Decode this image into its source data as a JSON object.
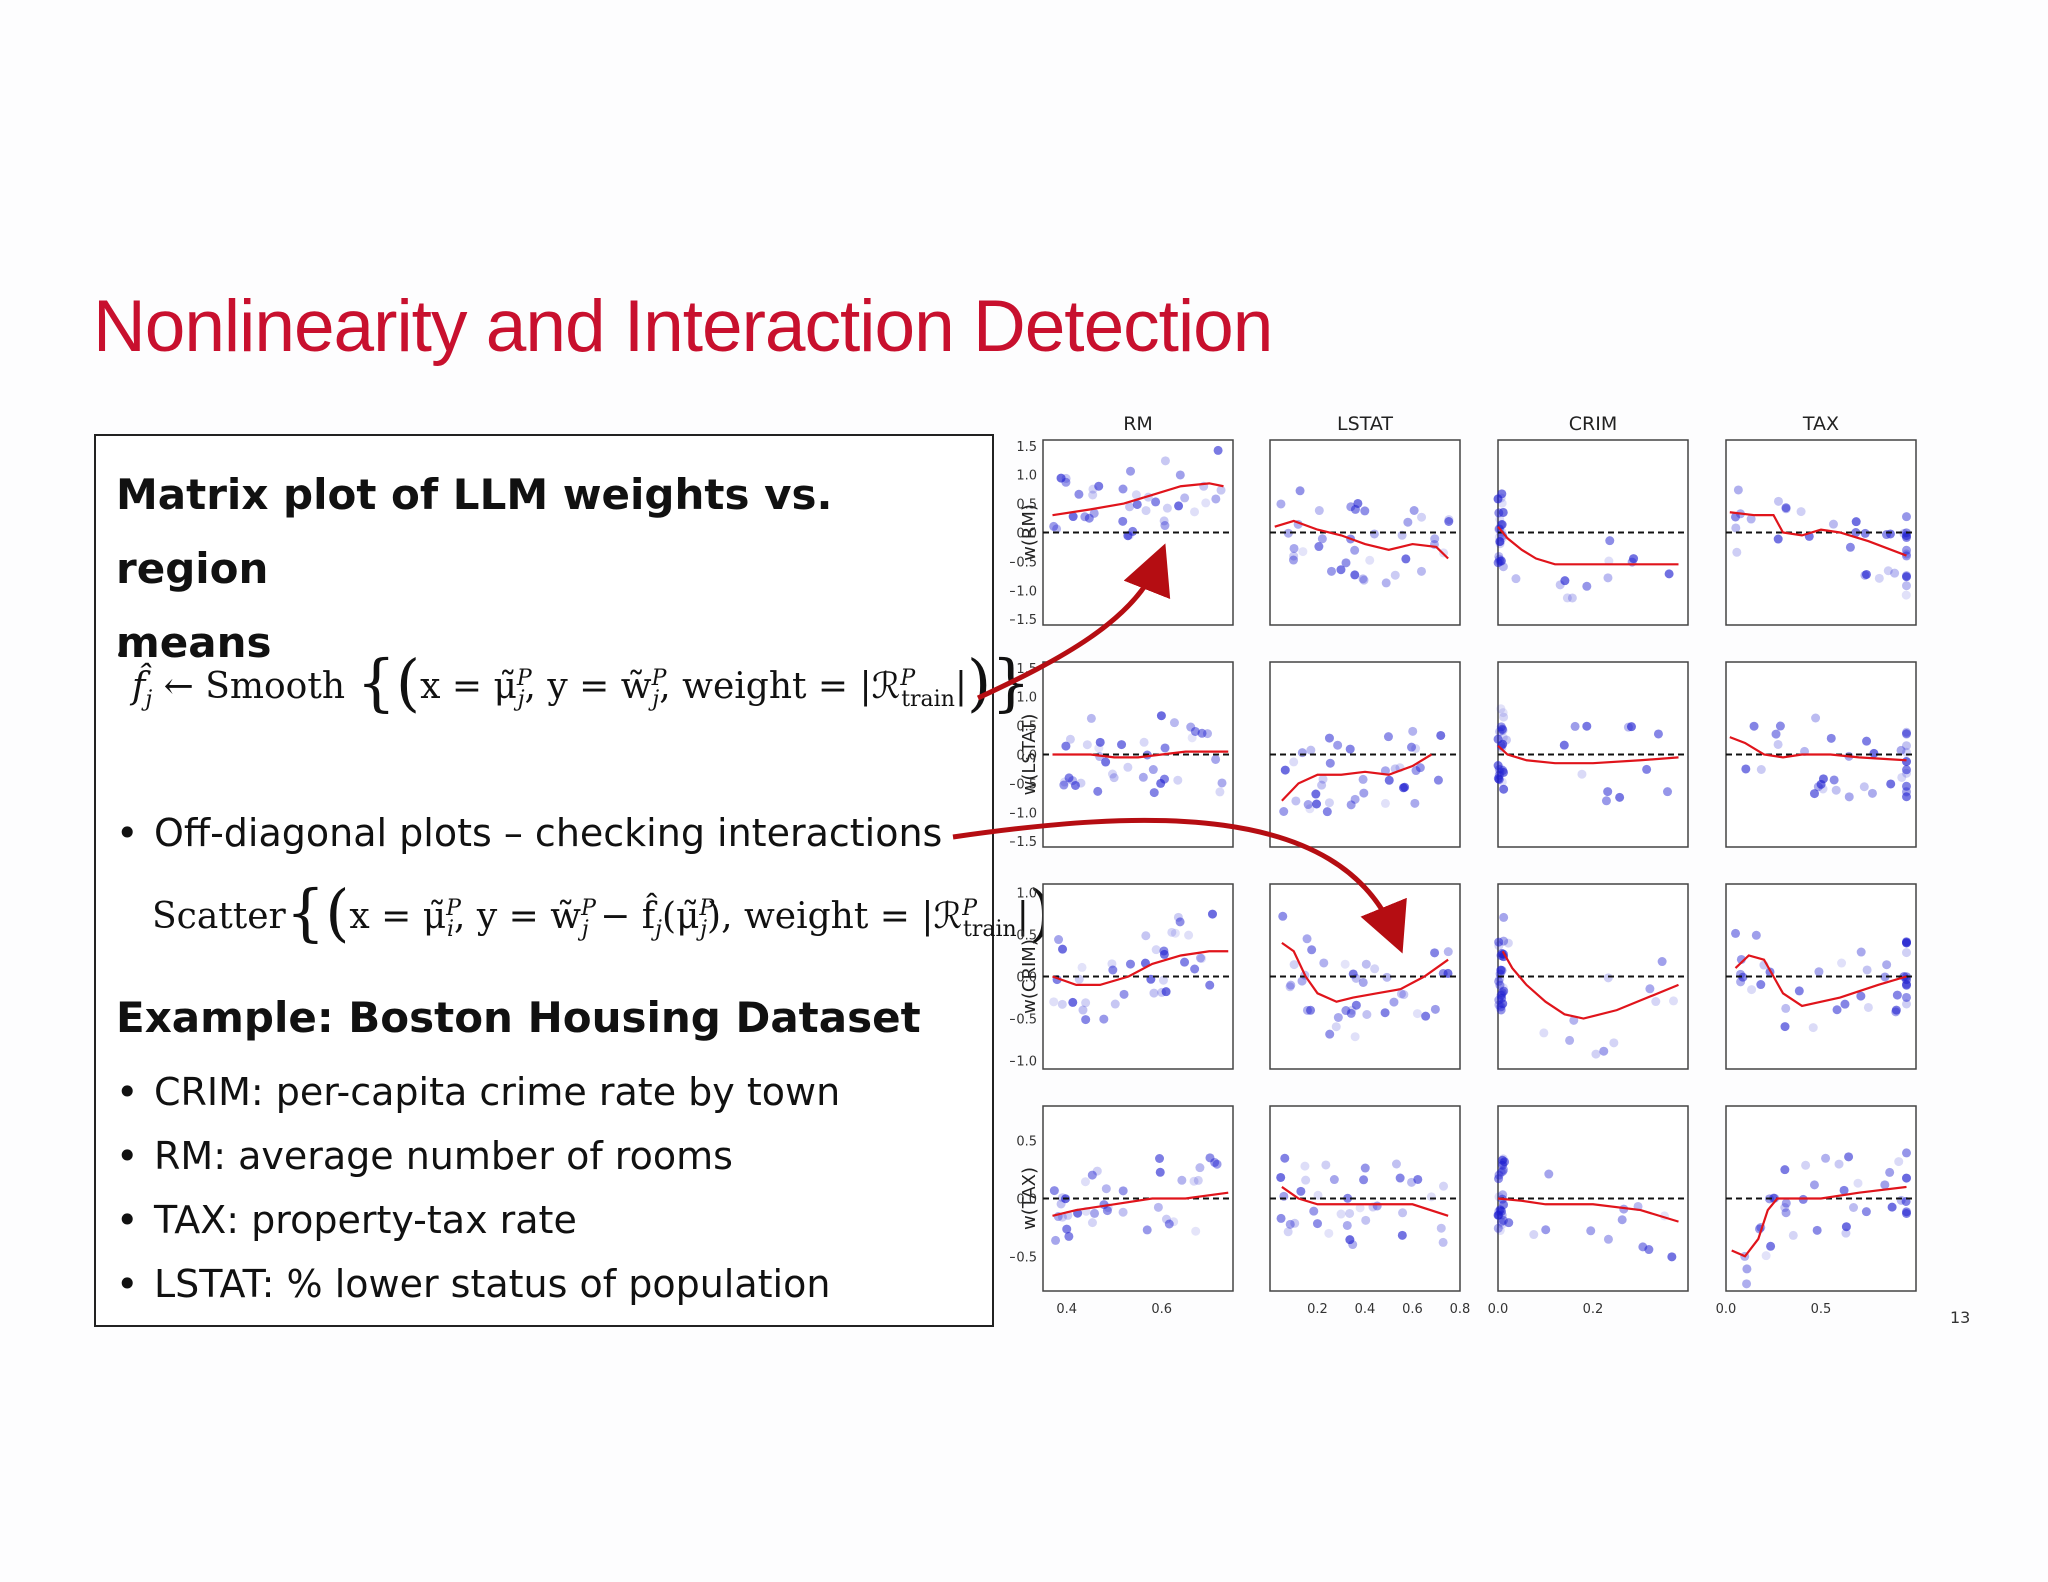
{
  "slide": {
    "title": "Nonlinearity and Interaction Detection",
    "page_number": "13"
  },
  "box": {
    "heading1_line1": "Matrix plot of LLM weights vs. region",
    "heading1_line2": "means",
    "stray_mark": "‘",
    "smooth_eq": {
      "lhs": "f̂",
      "lhs_sub": "j",
      "arrow": " ← Smooth",
      "x_part": "x = μ̃",
      "x_sub": "j",
      "x_sup": "P",
      "y_part": ", y = w̃",
      "y_sub": "j",
      "y_sup": "P",
      "weight_part": ", weight = |ℛ",
      "weight_sub": "train",
      "weight_sup": "P",
      "close": "|"
    },
    "bullet_offdiag": "Off-diagonal plots – checking interactions",
    "scatter_eq": {
      "label": "Scatter",
      "x_part": "x = μ̃",
      "x_sub": "i",
      "x_sup": "P",
      "y_part": ", y = w̃",
      "y_sub": "j",
      "y_sup": "P",
      "minus": " − f̂",
      "minus_sub": "j",
      "arg": "(μ̃",
      "arg_sub": "j",
      "arg_sup": "P",
      "arg_close": ")",
      "weight_part": ", weight = |ℛ",
      "weight_sub": "train",
      "weight_sup": "P",
      "close": "|"
    },
    "heading2": "Example: Boston Housing Dataset",
    "bullets": [
      "CRIM: per-capita crime rate by town",
      "RM: average number of rooms",
      "TAX: property-tax rate",
      "LSTAT: % lower status of population"
    ]
  },
  "colors": {
    "title": "#c8102e",
    "arrow": "#b50d12",
    "curve": "#e0141b",
    "point": "#1f1fd0"
  },
  "chart_data": {
    "type": "scatter",
    "layout": "matrix 4x4",
    "columns": [
      "RM",
      "LSTAT",
      "CRIM",
      "TAX"
    ],
    "rows": [
      "w(RM)",
      "w(LSTAT)",
      "w(CRIM)",
      "w(TAX)"
    ],
    "xlim": {
      "RM": [
        0.35,
        0.75
      ],
      "LSTAT": [
        0.0,
        0.8
      ],
      "CRIM": [
        0.0,
        0.4
      ],
      "TAX": [
        0.0,
        1.0
      ]
    },
    "xticks": {
      "RM": [
        "0.4",
        "0.6"
      ],
      "LSTAT": [
        "0.2",
        "0.4",
        "0.6",
        "0.8"
      ],
      "CRIM": [
        "0.0",
        "0.2"
      ],
      "TAX": [
        "0.0",
        "0.5"
      ]
    },
    "ylim": {
      "w(RM)": [
        -1.6,
        1.6
      ],
      "w(LSTAT)": [
        -1.6,
        1.6
      ],
      "w(CRIM)": [
        -1.1,
        1.1
      ],
      "w(TAX)": [
        -0.8,
        0.8
      ]
    },
    "yticks": {
      "w(RM)": [
        "1.5",
        "1.0",
        "0.5",
        "0.0",
        "−0.5",
        "−1.0",
        "−1.5"
      ],
      "w(LSTAT)": [
        "1.5",
        "1.0",
        "0.5",
        "0.0",
        "−0.5",
        "−1.0",
        "−1.5"
      ],
      "w(CRIM)": [
        "1.0",
        "0.5",
        "0.0",
        "−0.5",
        "−1.0"
      ],
      "w(TAX)": [
        "0.5",
        "0.0",
        "−0.5"
      ]
    },
    "yticks_values": {
      "w(RM)": [
        1.5,
        1.0,
        0.5,
        0.0,
        -0.5,
        -1.0,
        -1.5
      ],
      "w(LSTAT)": [
        1.5,
        1.0,
        0.5,
        0.0,
        -0.5,
        -1.0,
        -1.5
      ],
      "w(CRIM)": [
        1.0,
        0.5,
        0.0,
        -0.5,
        -1.0
      ],
      "w(TAX)": [
        0.5,
        0.0,
        -0.5
      ]
    },
    "xticks_values": {
      "RM": [
        0.4,
        0.6
      ],
      "LSTAT": [
        0.2,
        0.4,
        0.6,
        0.8
      ],
      "CRIM": [
        0.0,
        0.2
      ],
      "TAX": [
        0.0,
        0.5
      ]
    },
    "reference_line": 0,
    "smooth_curves": [
      [
        {
          "x": [
            0.37,
            0.45,
            0.52,
            0.58,
            0.64,
            0.7,
            0.73
          ],
          "y": [
            0.3,
            0.4,
            0.5,
            0.65,
            0.8,
            0.85,
            0.8
          ]
        },
        {
          "x": [
            0.02,
            0.1,
            0.2,
            0.3,
            0.4,
            0.5,
            0.6,
            0.7,
            0.75
          ],
          "y": [
            0.1,
            0.2,
            0.05,
            -0.05,
            -0.2,
            -0.3,
            -0.2,
            -0.25,
            -0.45
          ]
        },
        {
          "x": [
            0.0,
            0.02,
            0.05,
            0.08,
            0.12,
            0.2,
            0.3,
            0.38
          ],
          "y": [
            0.1,
            -0.1,
            -0.3,
            -0.45,
            -0.55,
            -0.55,
            -0.55,
            -0.55
          ]
        },
        {
          "x": [
            0.02,
            0.15,
            0.25,
            0.3,
            0.4,
            0.5,
            0.6,
            0.75,
            0.95
          ],
          "y": [
            0.35,
            0.3,
            0.3,
            0.0,
            -0.05,
            0.05,
            0.0,
            -0.15,
            -0.4
          ]
        }
      ],
      [
        {
          "x": [
            0.37,
            0.45,
            0.5,
            0.55,
            0.6,
            0.65,
            0.7,
            0.74
          ],
          "y": [
            0.0,
            0.0,
            -0.05,
            -0.05,
            0.0,
            0.05,
            0.05,
            0.05
          ]
        },
        {
          "x": [
            0.05,
            0.12,
            0.2,
            0.3,
            0.4,
            0.5,
            0.6,
            0.68
          ],
          "y": [
            -0.8,
            -0.5,
            -0.35,
            -0.35,
            -0.3,
            -0.35,
            -0.2,
            0.0
          ]
        },
        {
          "x": [
            0.0,
            0.02,
            0.06,
            0.12,
            0.2,
            0.3,
            0.38
          ],
          "y": [
            0.15,
            0.0,
            -0.1,
            -0.15,
            -0.15,
            -0.1,
            -0.05
          ]
        },
        {
          "x": [
            0.02,
            0.1,
            0.2,
            0.3,
            0.4,
            0.55,
            0.7,
            0.95
          ],
          "y": [
            0.3,
            0.2,
            0.0,
            -0.05,
            0.0,
            0.0,
            -0.05,
            -0.1
          ]
        }
      ],
      [
        {
          "x": [
            0.37,
            0.42,
            0.47,
            0.53,
            0.58,
            0.64,
            0.7,
            0.74
          ],
          "y": [
            0.0,
            -0.1,
            -0.1,
            0.0,
            0.15,
            0.25,
            0.3,
            0.3
          ]
        },
        {
          "x": [
            0.05,
            0.1,
            0.15,
            0.2,
            0.28,
            0.35,
            0.45,
            0.55,
            0.65,
            0.75
          ],
          "y": [
            0.4,
            0.3,
            0.0,
            -0.2,
            -0.3,
            -0.25,
            -0.2,
            -0.15,
            0.0,
            0.2
          ]
        },
        {
          "x": [
            0.01,
            0.03,
            0.06,
            0.1,
            0.14,
            0.18,
            0.25,
            0.38
          ],
          "y": [
            0.3,
            0.1,
            -0.1,
            -0.3,
            -0.45,
            -0.5,
            -0.4,
            -0.1
          ]
        },
        {
          "x": [
            0.05,
            0.12,
            0.2,
            0.25,
            0.3,
            0.4,
            0.6,
            0.8,
            0.95
          ],
          "y": [
            0.1,
            0.25,
            0.2,
            0.0,
            -0.2,
            -0.35,
            -0.25,
            -0.1,
            0.0
          ]
        }
      ],
      [
        {
          "x": [
            0.37,
            0.42,
            0.5,
            0.58,
            0.65,
            0.74
          ],
          "y": [
            -0.15,
            -0.1,
            -0.05,
            0.0,
            0.0,
            0.05
          ]
        },
        {
          "x": [
            0.05,
            0.12,
            0.2,
            0.3,
            0.45,
            0.6,
            0.75
          ],
          "y": [
            0.1,
            0.0,
            -0.05,
            -0.05,
            -0.05,
            -0.05,
            -0.15
          ]
        },
        {
          "x": [
            0.0,
            0.05,
            0.1,
            0.2,
            0.3,
            0.38
          ],
          "y": [
            0.0,
            -0.02,
            -0.05,
            -0.05,
            -0.1,
            -0.2
          ]
        },
        {
          "x": [
            0.03,
            0.1,
            0.17,
            0.22,
            0.27,
            0.35,
            0.5,
            0.7,
            0.95
          ],
          "y": [
            -0.45,
            -0.5,
            -0.35,
            -0.1,
            0.0,
            0.0,
            0.0,
            0.05,
            0.1
          ]
        }
      ]
    ]
  }
}
